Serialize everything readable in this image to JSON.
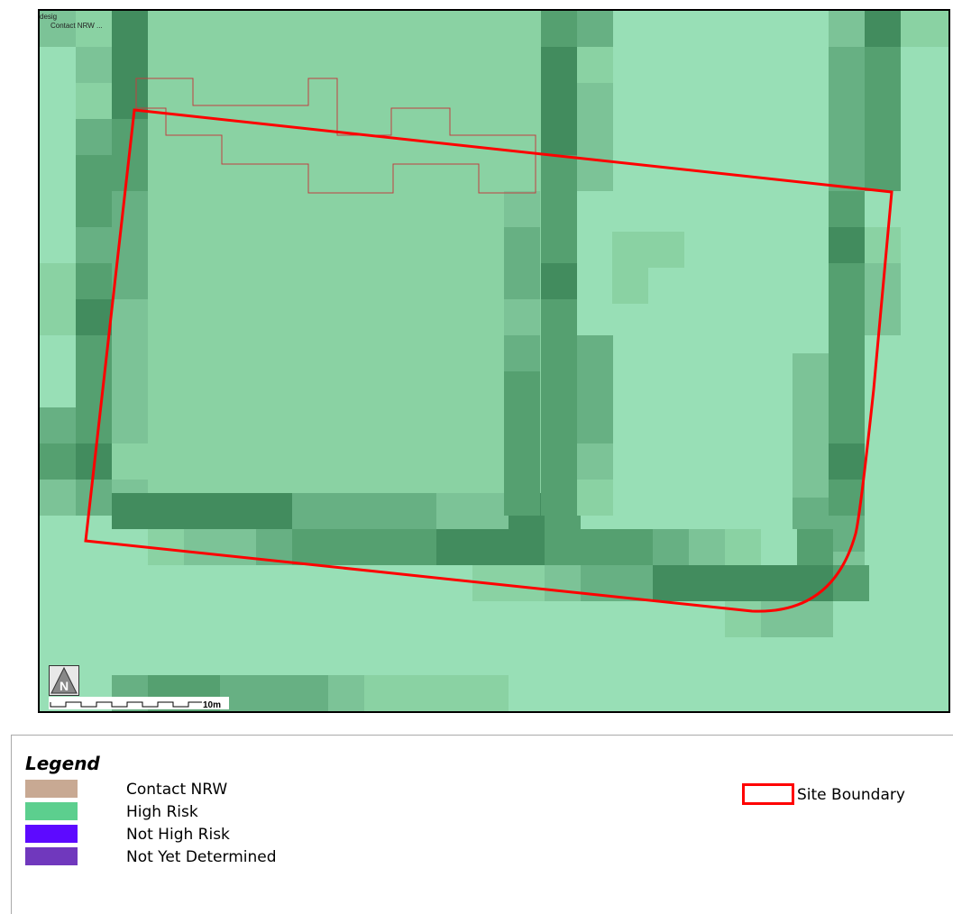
{
  "map": {
    "layer_label_1": "desig",
    "layer_label_2": "Contact NRW ...",
    "north_label": "N",
    "scale_label": "10m",
    "colors": {
      "background": "#98dfb6",
      "very_light": "#98dfb6",
      "light": "#8ad2a3",
      "medium_light": "#7cc397",
      "medium": "#67b083",
      "medium_dark": "#55a070",
      "dark": "#428c5e",
      "site_boundary": "#ff0000",
      "overlay_outline": "#c04040"
    }
  },
  "legend": {
    "title": "Legend",
    "items": [
      {
        "label": "Contact NRW",
        "color": "#c8a993"
      },
      {
        "label": "High Risk",
        "color": "#5ccf8e"
      },
      {
        "label": "Not High Risk",
        "color": "#5d0aff"
      },
      {
        "label": "Not Yet Determined",
        "color": "#7038bd"
      }
    ],
    "site_boundary_label": "Site Boundary"
  }
}
